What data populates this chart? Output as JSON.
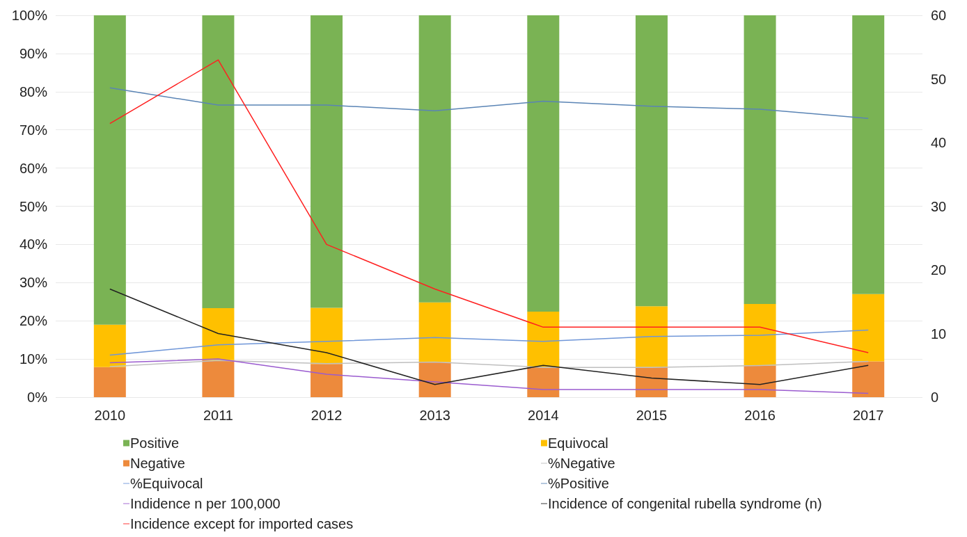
{
  "chart_data": {
    "type": "bar",
    "stacked": true,
    "legend": "bottom",
    "grid": "y",
    "categories": [
      "2010",
      "2011",
      "2012",
      "2013",
      "2014",
      "2015",
      "2016",
      "2017"
    ],
    "ylim": [
      0,
      100
    ],
    "yticks": [
      {
        "value": 0,
        "label": "0%"
      },
      {
        "value": 10,
        "label": "10%"
      },
      {
        "value": 20,
        "label": "20%"
      },
      {
        "value": 30,
        "label": "30%"
      },
      {
        "value": 40,
        "label": "40%"
      },
      {
        "value": 50,
        "label": "50%"
      },
      {
        "value": 60,
        "label": "60%"
      },
      {
        "value": 70,
        "label": "70%"
      },
      {
        "value": 80,
        "label": "80%"
      },
      {
        "value": 90,
        "label": "90%"
      },
      {
        "value": 100,
        "label": "100%"
      }
    ],
    "y2lim": [
      0,
      60
    ],
    "y2ticks": [
      0,
      10,
      20,
      30,
      40,
      50,
      60
    ],
    "series": [
      {
        "name": "Negative",
        "color": "#ed8a3c",
        "values": [
          7.9,
          9.7,
          8.7,
          9.2,
          7.9,
          7.9,
          8.3,
          9.4
        ]
      },
      {
        "name": "Equivocal",
        "color": "#ffc000",
        "values": [
          11.1,
          13.6,
          14.7,
          15.6,
          14.5,
          15.9,
          16.1,
          17.6
        ]
      },
      {
        "name": "Positive",
        "color": "#7ab354",
        "values": [
          81,
          76.7,
          76.6,
          75.2,
          77.6,
          76.2,
          75.6,
          73
        ]
      },
      {
        "name": "%Negative",
        "type": "line",
        "color": "#bfbfbf",
        "values": [
          8,
          9.6,
          8.8,
          9.2,
          7.8,
          7.8,
          8.3,
          9.4
        ]
      },
      {
        "name": "%Equivocal",
        "type": "line",
        "color": "#6f96d8",
        "values": [
          11,
          13.7,
          14.6,
          15.6,
          14.6,
          15.9,
          16.2,
          17.6
        ]
      },
      {
        "name": "%Positive",
        "type": "line",
        "color": "#5a84b5",
        "values": [
          81,
          76.5,
          76.5,
          75,
          77.5,
          76.2,
          75.4,
          73
        ]
      },
      {
        "name": "Indidence n per 100,000",
        "type": "line",
        "color": "#9a5bcf",
        "values": [
          9,
          10,
          6,
          4,
          2,
          2,
          2,
          1
        ]
      },
      {
        "name": "Incidence of congenital rubella syndrome (n)",
        "type": "line",
        "axis": "y2",
        "color": "#222222",
        "values": [
          17,
          10,
          7,
          2,
          5,
          3,
          2,
          5
        ]
      },
      {
        "name": "Incidence except for imported cases",
        "type": "line",
        "axis": "y2",
        "color": "#ff2020",
        "values": [
          43,
          53,
          24,
          17,
          11,
          11,
          11,
          7
        ]
      }
    ]
  }
}
